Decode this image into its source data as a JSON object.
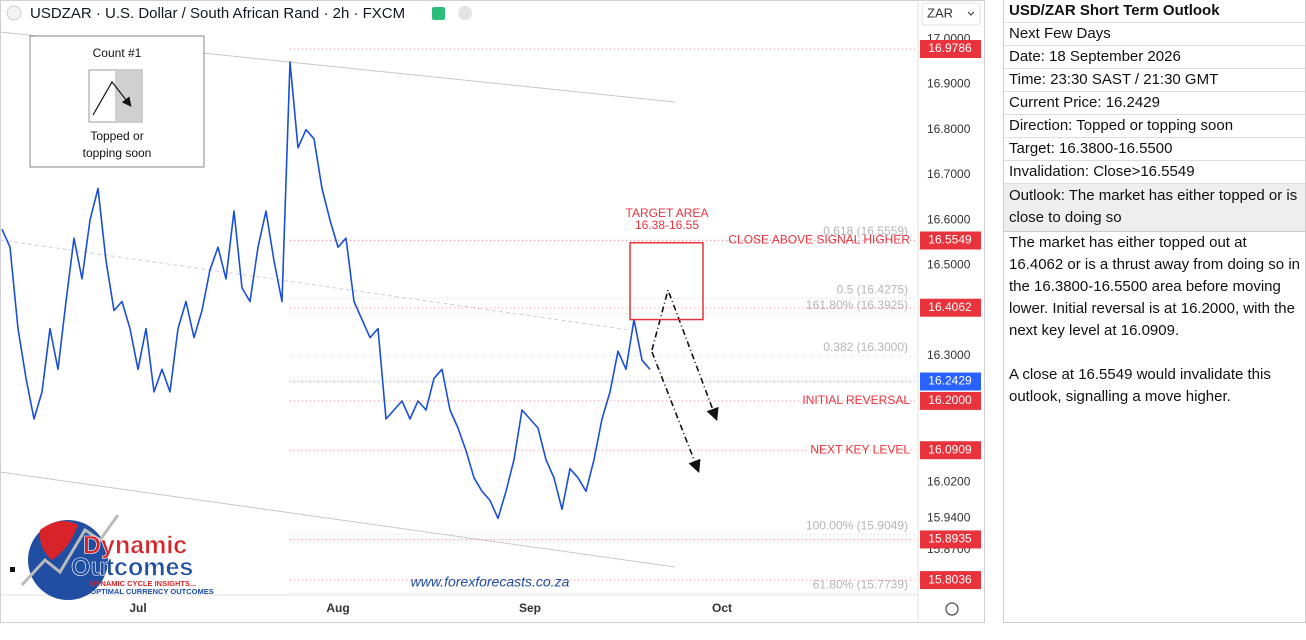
{
  "chart_data": {
    "type": "line",
    "title": "USDZAR · U.S. Dollar / South African Rand · 2h · FXCM",
    "currency": "ZAR",
    "categories": [
      null,
      null,
      null,
      null,
      null,
      null,
      null,
      null,
      null,
      null,
      null,
      null,
      null,
      null,
      null,
      null,
      null,
      "Jul",
      null,
      null,
      null,
      null,
      null,
      null,
      null,
      null,
      null,
      null,
      null,
      null,
      null,
      null,
      null,
      null,
      null,
      null,
      null,
      null,
      null,
      null,
      null,
      null,
      "Aug",
      null,
      null,
      null,
      null,
      null,
      null,
      null,
      null,
      null,
      null,
      null,
      null,
      null,
      null,
      null,
      null,
      null,
      null,
      null,
      null,
      null,
      null,
      null,
      "Sep",
      null,
      null,
      null,
      null,
      null,
      null,
      null,
      null,
      null,
      null,
      null,
      null,
      null,
      null,
      null,
      null,
      null,
      null,
      null,
      null,
      null,
      null,
      null,
      "Oct"
    ],
    "series": [
      {
        "name": "USDZAR",
        "color": "#1a4fd8",
        "values": [
          16.58,
          16.54,
          16.36,
          16.25,
          16.16,
          16.22,
          16.36,
          16.27,
          16.42,
          16.56,
          16.47,
          16.6,
          16.67,
          16.51,
          16.4,
          16.42,
          16.36,
          16.27,
          16.36,
          16.22,
          16.27,
          16.22,
          16.36,
          16.42,
          16.34,
          16.4,
          16.49,
          16.54,
          16.47,
          16.62,
          16.45,
          16.42,
          16.54,
          16.62,
          16.51,
          16.42,
          16.95,
          16.76,
          16.8,
          16.78,
          16.67,
          16.6,
          16.54,
          16.56,
          16.42,
          16.38,
          16.34,
          16.36,
          16.16,
          16.18,
          16.2,
          16.16,
          16.2,
          16.18,
          16.25,
          16.27,
          16.18,
          16.14,
          16.09,
          16.03,
          16.0,
          15.98,
          15.94,
          16.0,
          16.07,
          16.18,
          16.16,
          16.14,
          16.07,
          16.03,
          15.96,
          16.05,
          16.03,
          16.0,
          16.07,
          16.16,
          16.22,
          16.31,
          16.27,
          16.38,
          16.29,
          16.27,
          null,
          null,
          null,
          null,
          null,
          null,
          null,
          null,
          null
        ]
      }
    ],
    "ylim": [
      15.7706,
      17.087
    ],
    "yticks": [
      {
        "value": 17,
        "label": "17.0000"
      },
      {
        "value": 16.9,
        "label": "16.9000"
      },
      {
        "value": 16.8,
        "label": "16.8000"
      },
      {
        "value": 16.7,
        "label": "16.7000"
      },
      {
        "value": 16.6,
        "label": "16.6000"
      },
      {
        "value": 16.5,
        "label": "16.5000"
      },
      {
        "value": 16.3,
        "label": "16.3000"
      },
      {
        "value": 16.02,
        "label": "16.0200"
      },
      {
        "value": 15.94,
        "label": "15.9400"
      },
      {
        "value": 15.87,
        "label": "15.8700"
      }
    ],
    "grid": false,
    "price_labels": [
      {
        "value": 16.9786,
        "color": "#e8333c"
      },
      {
        "value": 16.5549,
        "color": "#e8333c",
        "text": "CLOSE ABOVE SIGNAL HIGHER"
      },
      {
        "value": 16.4062,
        "color": "#e8333c"
      },
      {
        "value": 16.2429,
        "color": "#2962ff"
      },
      {
        "value": 16.2,
        "label": "16.2000",
        "color": "#e8333c",
        "text": "INITIAL REVERSAL"
      },
      {
        "value": 16.0909,
        "color": "#e8333c",
        "text": "NEXT KEY LEVEL"
      },
      {
        "value": 15.8935,
        "color": "#e8333c"
      },
      {
        "value": 15.8036,
        "color": "#e8333c"
      }
    ],
    "fib_levels": [
      {
        "label": "0.618 (16.5559)",
        "value": 16.5559
      },
      {
        "label": "0.5 (16.4275)",
        "value": 16.4275
      },
      {
        "label": "161.80% (16.3925)",
        "value": 16.3925
      },
      {
        "label": "0.382 (16.3000)",
        "value": 16.3
      },
      {
        "label": "100.00% (15.9049)",
        "value": 15.9049
      },
      {
        "label": "61.80% (15.7739)",
        "value": 15.7739
      }
    ],
    "target_area": {
      "label": "TARGET AREA",
      "range_label": "16.38-16.55",
      "ymin": 16.38,
      "ymax": 16.55
    },
    "count_box": {
      "title": "Count #1",
      "text_lines": [
        "Topped or",
        "topping soon"
      ]
    }
  },
  "branding": {
    "logo_top": "Dynamic",
    "logo_bottom": "Outcomes",
    "tagline_1": "DYNAMIC CYCLE INSIGHTS...",
    "tagline_2": "...OPTIMAL CURRENCY OUTCOMES",
    "watermark": "www.forexforecasts.co.za"
  },
  "panel": {
    "title": "USD/ZAR Short Term Outlook",
    "rows": [
      "Next Few Days",
      "Date: 18 September 2026",
      "Time: 23:30 SAST / 21:30 GMT",
      "Current Price: 16.2429",
      "Direction: Topped or topping soon",
      "Target: 16.3800-16.5500",
      "Invalidation: Close>16.5549"
    ],
    "outlook": "Outlook: The market has either topped or is close to doing so",
    "paragraphs": [
      "The market has either topped out at 16.4062 or is a thrust away from doing so in the 16.3800-16.5500 area before moving lower. Initial reversal is at 16.2000, with the next key level at 16.0909.",
      "A close at 16.5549 would invalidate this outlook, signalling a move higher."
    ]
  }
}
